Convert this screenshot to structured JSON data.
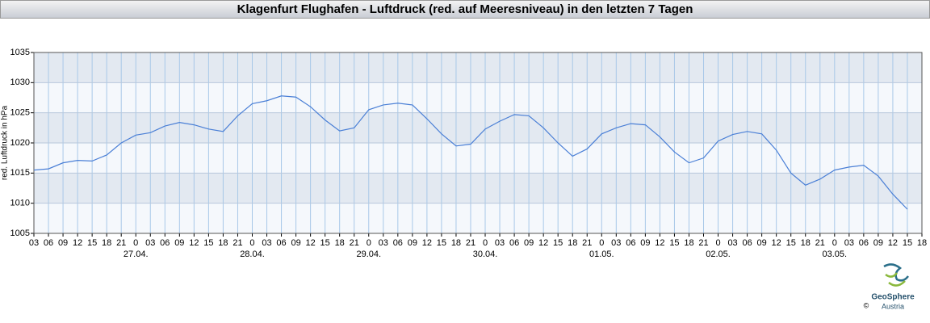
{
  "chart_data": {
    "type": "line",
    "title": "Klagenfurt Flughafen - Luftdruck (red. auf Meeresniveau) in den letzten 7 Tagen",
    "y_label": "red. Luftdruck in hPa",
    "ylim": [
      1005,
      1035
    ],
    "yticks": [
      1005,
      1010,
      1015,
      1020,
      1025,
      1030,
      1035
    ],
    "xlim": [
      0,
      183
    ],
    "xticks": [
      {
        "value": 0,
        "label": "03"
      },
      {
        "value": 3,
        "label": "06"
      },
      {
        "value": 6,
        "label": "09"
      },
      {
        "value": 9,
        "label": "12"
      },
      {
        "value": 12,
        "label": "15"
      },
      {
        "value": 15,
        "label": "18"
      },
      {
        "value": 18,
        "label": "21"
      },
      {
        "value": 21,
        "label": "0"
      },
      {
        "value": 24,
        "label": "03"
      },
      {
        "value": 27,
        "label": "06"
      },
      {
        "value": 30,
        "label": "09"
      },
      {
        "value": 33,
        "label": "12"
      },
      {
        "value": 36,
        "label": "15"
      },
      {
        "value": 39,
        "label": "18"
      },
      {
        "value": 42,
        "label": "21"
      },
      {
        "value": 45,
        "label": "0"
      },
      {
        "value": 48,
        "label": "03"
      },
      {
        "value": 51,
        "label": "06"
      },
      {
        "value": 54,
        "label": "09"
      },
      {
        "value": 57,
        "label": "12"
      },
      {
        "value": 60,
        "label": "15"
      },
      {
        "value": 63,
        "label": "18"
      },
      {
        "value": 66,
        "label": "21"
      },
      {
        "value": 69,
        "label": "0"
      },
      {
        "value": 72,
        "label": "03"
      },
      {
        "value": 75,
        "label": "06"
      },
      {
        "value": 78,
        "label": "09"
      },
      {
        "value": 81,
        "label": "12"
      },
      {
        "value": 84,
        "label": "15"
      },
      {
        "value": 87,
        "label": "18"
      },
      {
        "value": 90,
        "label": "21"
      },
      {
        "value": 93,
        "label": "0"
      },
      {
        "value": 96,
        "label": "03"
      },
      {
        "value": 99,
        "label": "06"
      },
      {
        "value": 102,
        "label": "09"
      },
      {
        "value": 105,
        "label": "12"
      },
      {
        "value": 108,
        "label": "15"
      },
      {
        "value": 111,
        "label": "18"
      },
      {
        "value": 114,
        "label": "21"
      },
      {
        "value": 117,
        "label": "0"
      },
      {
        "value": 120,
        "label": "03"
      },
      {
        "value": 123,
        "label": "06"
      },
      {
        "value": 126,
        "label": "09"
      },
      {
        "value": 129,
        "label": "12"
      },
      {
        "value": 132,
        "label": "15"
      },
      {
        "value": 135,
        "label": "18"
      },
      {
        "value": 138,
        "label": "21"
      },
      {
        "value": 141,
        "label": "0"
      },
      {
        "value": 144,
        "label": "03"
      },
      {
        "value": 147,
        "label": "06"
      },
      {
        "value": 150,
        "label": "09"
      },
      {
        "value": 153,
        "label": "12"
      },
      {
        "value": 156,
        "label": "15"
      },
      {
        "value": 159,
        "label": "18"
      },
      {
        "value": 162,
        "label": "21"
      },
      {
        "value": 165,
        "label": "0"
      },
      {
        "value": 168,
        "label": "03"
      },
      {
        "value": 171,
        "label": "06"
      },
      {
        "value": 174,
        "label": "09"
      },
      {
        "value": 177,
        "label": "12"
      },
      {
        "value": 180,
        "label": "15"
      },
      {
        "value": 183,
        "label": "18"
      }
    ],
    "date_labels": [
      {
        "value": 21,
        "label": "27.04."
      },
      {
        "value": 45,
        "label": "28.04."
      },
      {
        "value": 69,
        "label": "29.04."
      },
      {
        "value": 93,
        "label": "30.04."
      },
      {
        "value": 117,
        "label": "01.05."
      },
      {
        "value": 141,
        "label": "02.05."
      },
      {
        "value": 165,
        "label": "03.05."
      }
    ],
    "x": [
      0,
      3,
      6,
      9,
      12,
      15,
      18,
      21,
      24,
      27,
      30,
      33,
      36,
      39,
      42,
      45,
      48,
      51,
      54,
      57,
      60,
      63,
      66,
      69,
      72,
      75,
      78,
      81,
      84,
      87,
      90,
      93,
      96,
      99,
      102,
      105,
      108,
      111,
      114,
      117,
      120,
      123,
      126,
      129,
      132,
      135,
      138,
      141,
      144,
      147,
      150,
      153,
      156,
      159,
      162,
      165,
      168,
      171,
      174,
      177,
      180
    ],
    "series": [
      {
        "name": "Luftdruck",
        "color": "#4a7fd6",
        "values": [
          1015.5,
          1015.7,
          1016.7,
          1017.1,
          1017.0,
          1018.0,
          1020.0,
          1021.3,
          1021.7,
          1022.8,
          1023.4,
          1023.0,
          1022.3,
          1021.9,
          1024.5,
          1026.5,
          1027.0,
          1027.8,
          1027.6,
          1026.0,
          1023.8,
          1022.0,
          1022.5,
          1025.5,
          1026.3,
          1026.6,
          1026.3,
          1024.0,
          1021.5,
          1019.5,
          1019.8,
          1022.3,
          1023.6,
          1024.7,
          1024.5,
          1022.5,
          1020.0,
          1017.8,
          1019.0,
          1021.5,
          1022.5,
          1023.2,
          1023.0,
          1021.0,
          1018.5,
          1016.7,
          1017.5,
          1020.3,
          1021.4,
          1021.9,
          1021.5,
          1018.8,
          1015.0,
          1013.0,
          1014.0,
          1015.5,
          1016.0,
          1016.3,
          1014.5,
          1011.5,
          1009.0
        ]
      }
    ],
    "grid": true,
    "logo": {
      "name": "GeoSphere",
      "sub": "Austria",
      "copyright": "©"
    }
  }
}
